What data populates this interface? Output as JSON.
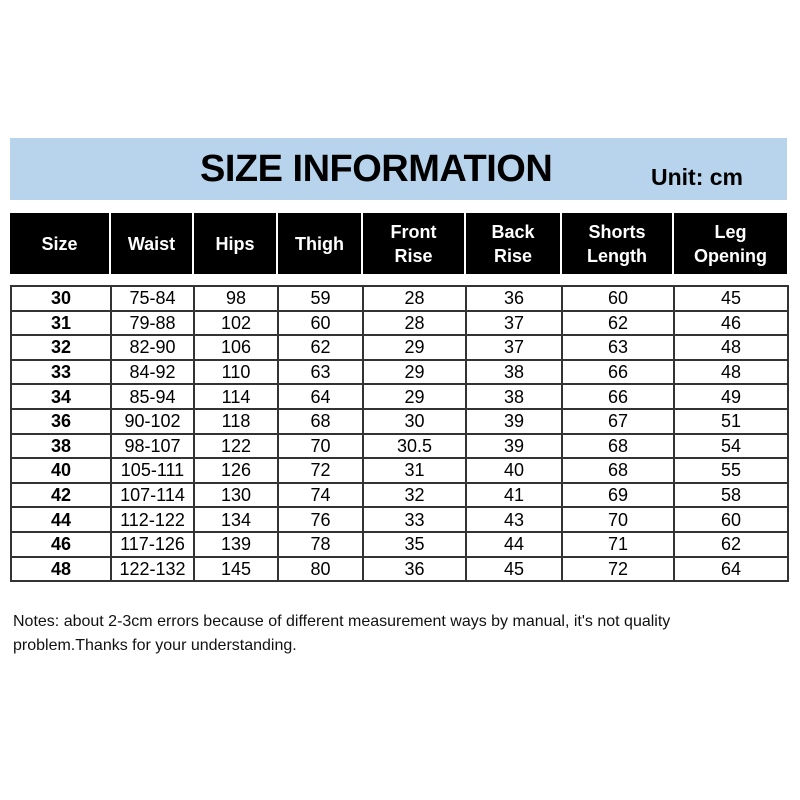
{
  "banner": {
    "title": "SIZE INFORMATION",
    "unit": "Unit: cm",
    "color": "#b8d4ec"
  },
  "columns": [
    [
      "Size"
    ],
    [
      "Waist"
    ],
    [
      "Hips"
    ],
    [
      "Thigh"
    ],
    [
      "Front",
      "Rise"
    ],
    [
      "Back",
      "Rise"
    ],
    [
      "Shorts",
      "Length"
    ],
    [
      "Leg",
      "Opening"
    ]
  ],
  "rows": [
    [
      "30",
      "75-84",
      "98",
      "59",
      "28",
      "36",
      "60",
      "45"
    ],
    [
      "31",
      "79-88",
      "102",
      "60",
      "28",
      "37",
      "62",
      "46"
    ],
    [
      "32",
      "82-90",
      "106",
      "62",
      "29",
      "37",
      "63",
      "48"
    ],
    [
      "33",
      "84-92",
      "110",
      "63",
      "29",
      "38",
      "66",
      "48"
    ],
    [
      "34",
      "85-94",
      "114",
      "64",
      "29",
      "38",
      "66",
      "49"
    ],
    [
      "36",
      "90-102",
      "118",
      "68",
      "30",
      "39",
      "67",
      "51"
    ],
    [
      "38",
      "98-107",
      "122",
      "70",
      "30.5",
      "39",
      "68",
      "54"
    ],
    [
      "40",
      "105-111",
      "126",
      "72",
      "31",
      "40",
      "68",
      "55"
    ],
    [
      "42",
      "107-114",
      "130",
      "74",
      "32",
      "41",
      "69",
      "58"
    ],
    [
      "44",
      "112-122",
      "134",
      "76",
      "33",
      "43",
      "70",
      "60"
    ],
    [
      "46",
      "117-126",
      "139",
      "78",
      "35",
      "44",
      "71",
      "62"
    ],
    [
      "48",
      "122-132",
      "145",
      "80",
      "36",
      "45",
      "72",
      "64"
    ]
  ],
  "notes": "Notes: about 2-3cm errors because of different measurement ways by manual, it's not quality problem.Thanks for your understanding."
}
